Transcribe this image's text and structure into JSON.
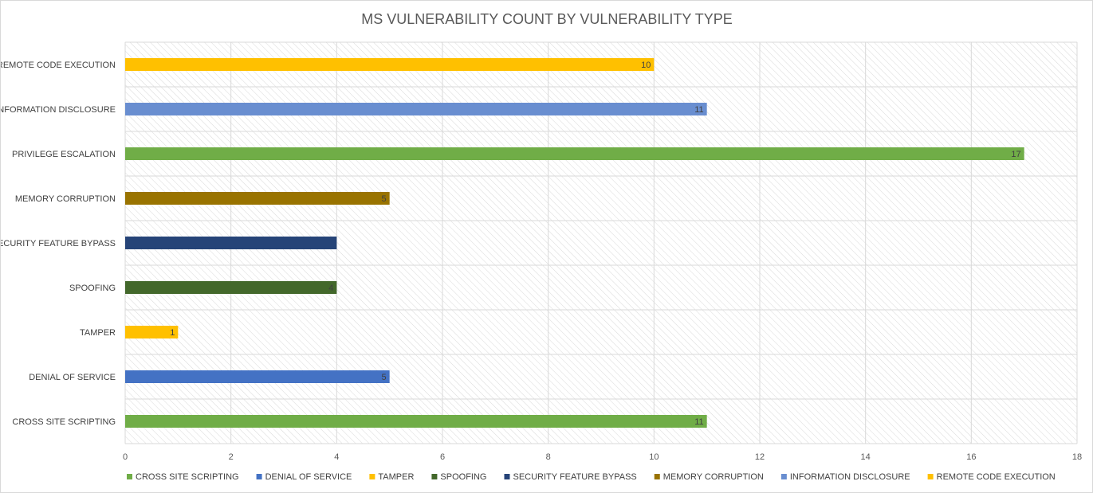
{
  "chart_data": {
    "type": "bar",
    "orientation": "horizontal",
    "title": "MS VULNERABILITY COUNT BY VULNERABILITY TYPE",
    "xlabel": "",
    "ylabel": "",
    "xlim": [
      0,
      18
    ],
    "x_ticks": [
      "0",
      "2",
      "4",
      "6",
      "8",
      "10",
      "12",
      "14",
      "16",
      "18"
    ],
    "grid": true,
    "legend_position": "bottom",
    "categories": [
      "CROSS SITE SCRIPTING",
      "DENIAL OF SERVICE",
      "TAMPER",
      "SPOOFING",
      "SECURITY FEATURE BYPASS",
      "MEMORY CORRUPTION",
      "PRIVILEGE ESCALATION",
      "INFORMATION DISCLOSURE",
      "REMOTE CODE EXECUTION"
    ],
    "values": [
      11,
      5,
      1,
      4,
      4,
      5,
      17,
      11,
      10
    ],
    "data_labels": [
      "11",
      "5",
      "1",
      "4",
      "",
      "5",
      "17",
      "11",
      "10"
    ],
    "colors": [
      "#70ad47",
      "#4472c4",
      "#ffc000",
      "#43682b",
      "#264478",
      "#997300",
      "#70ad47",
      "#698ed0",
      "#ffc000"
    ],
    "legend": [
      {
        "label": "CROSS SITE SCRIPTING",
        "color": "#70ad47"
      },
      {
        "label": "DENIAL OF SERVICE",
        "color": "#4472c4"
      },
      {
        "label": "TAMPER",
        "color": "#ffc000"
      },
      {
        "label": "SPOOFING",
        "color": "#43682b"
      },
      {
        "label": "SECURITY FEATURE BYPASS",
        "color": "#264478"
      },
      {
        "label": "MEMORY CORRUPTION",
        "color": "#997300"
      },
      {
        "label": "INFORMATION DISCLOSURE",
        "color": "#698ed0"
      },
      {
        "label": "REMOTE CODE EXECUTION",
        "color": "#ffc000"
      }
    ]
  }
}
